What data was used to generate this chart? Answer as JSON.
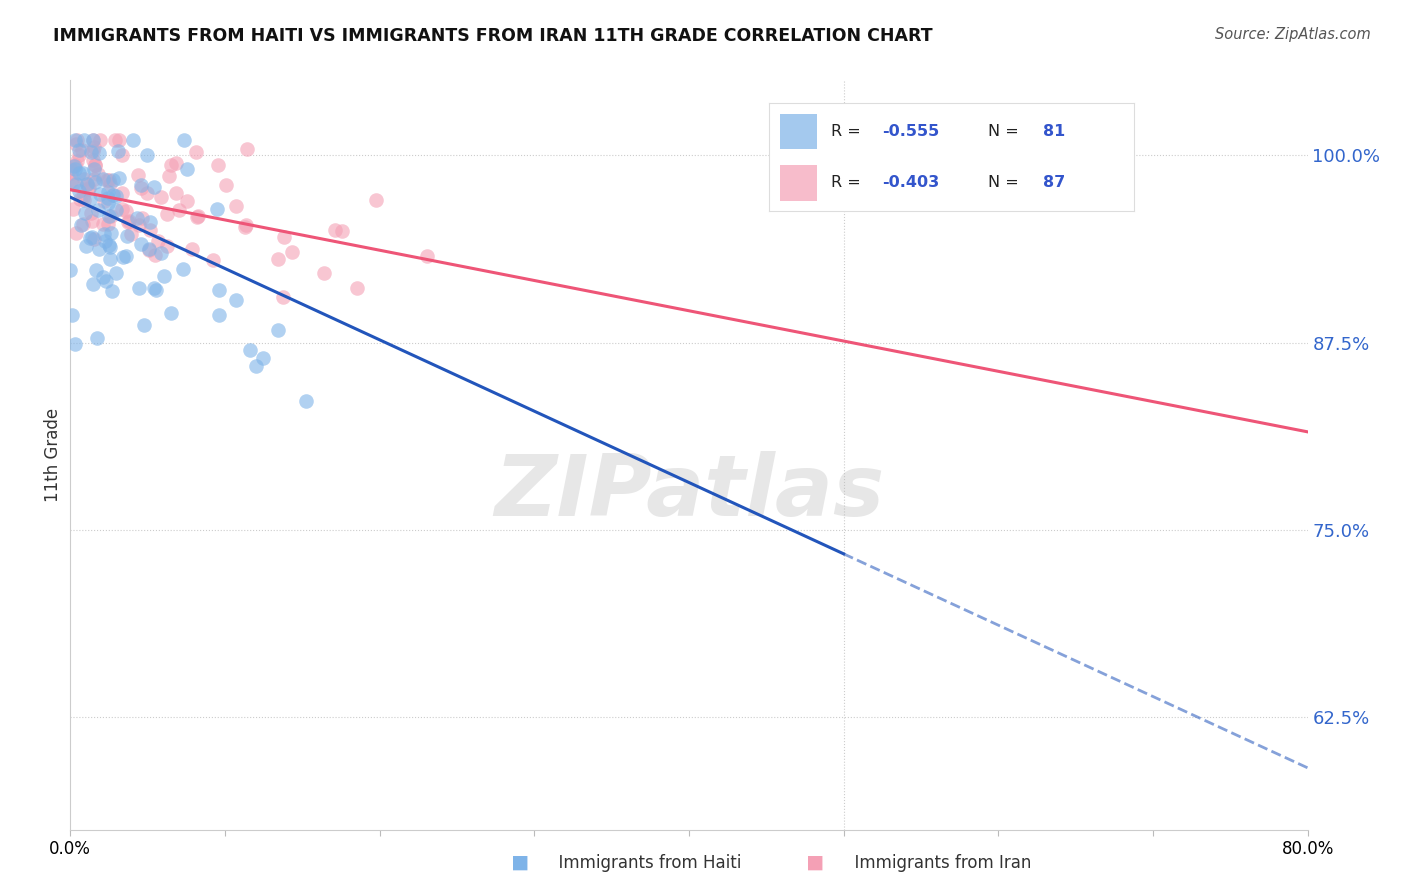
{
  "title": "IMMIGRANTS FROM HAITI VS IMMIGRANTS FROM IRAN 11TH GRADE CORRELATION CHART",
  "source": "Source: ZipAtlas.com",
  "ylabel": "11th Grade",
  "ytick_labels": [
    "100.0%",
    "87.5%",
    "75.0%",
    "62.5%"
  ],
  "ytick_values": [
    1.0,
    0.875,
    0.75,
    0.625
  ],
  "xlim": [
    0.0,
    0.8
  ],
  "ylim": [
    0.55,
    1.05
  ],
  "haiti_R": -0.555,
  "haiti_N": 81,
  "iran_R": -0.403,
  "iran_N": 87,
  "haiti_color": "#7EB3E8",
  "iran_color": "#F4A0B5",
  "haiti_line_color": "#2255BB",
  "iran_line_color": "#EE5577",
  "background_color": "#FFFFFF",
  "grid_color": "#CCCCCC",
  "watermark_text": "ZIPatlas",
  "watermark_color": "#BBBBBB",
  "legend_color": "#3355CC"
}
